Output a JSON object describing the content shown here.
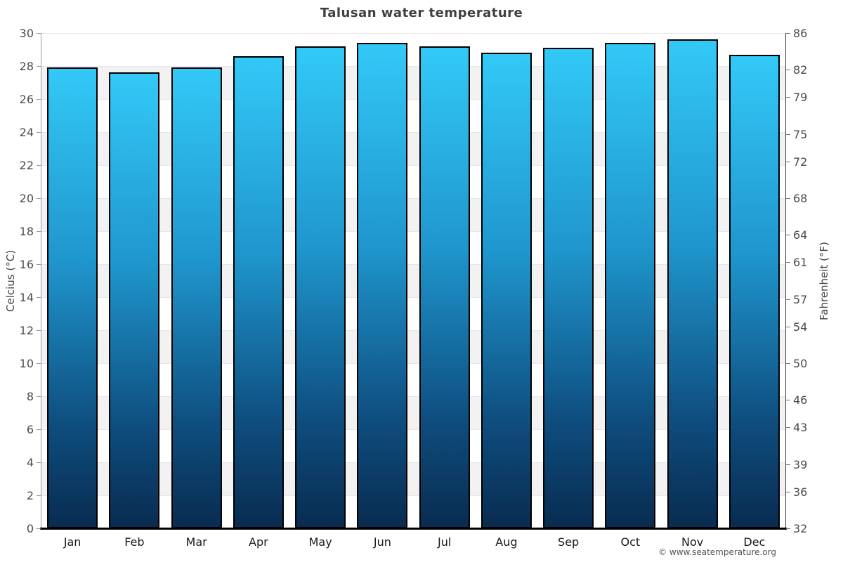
{
  "footer": {
    "credit": "© www.seatemperature.org"
  },
  "chart_data": {
    "type": "bar",
    "title": "Talusan water temperature",
    "categories": [
      "Jan",
      "Feb",
      "Mar",
      "Apr",
      "May",
      "Jun",
      "Jul",
      "Aug",
      "Sep",
      "Oct",
      "Nov",
      "Dec"
    ],
    "series": [
      {
        "name": "Water temperature",
        "unit": "°C",
        "values": [
          27.9,
          27.6,
          27.9,
          28.6,
          29.2,
          29.4,
          29.2,
          28.8,
          29.1,
          29.4,
          29.6,
          28.7
        ]
      }
    ],
    "xlabel": "",
    "ylabel_left": "Celcius (°C)",
    "ylabel_right": "Fahrenheit (°F)",
    "ylim": [
      0,
      30
    ],
    "yticks_celsius": [
      30,
      28,
      26,
      24,
      22,
      20,
      18,
      16,
      14,
      12,
      10,
      8,
      6,
      4,
      2,
      0
    ],
    "yticks_fahrenheit": [
      86,
      82,
      79,
      75,
      72,
      68,
      64,
      61,
      57,
      54,
      50,
      46,
      43,
      39,
      36,
      32
    ],
    "grid": "horizontal gridlines with alternating 2°C background bands",
    "legend": "none",
    "colors": {
      "band": "#f2f2f2",
      "gridline": "#e7e7e7",
      "bar_gradient_top": "#33c9f7",
      "bar_gradient_mid": "#1f96cd",
      "bar_gradient_low": "#0e4d7e",
      "bar_gradient_bottom": "#092c50",
      "bar_border": "#000000",
      "title_text": "#404040",
      "tick_text": "#4a4a4a",
      "month_text": "#1a1a1a",
      "footer_text": "#555555"
    }
  }
}
